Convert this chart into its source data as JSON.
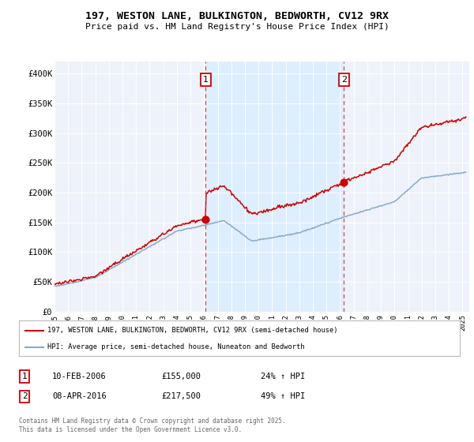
{
  "title_line1": "197, WESTON LANE, BULKINGTON, BEDWORTH, CV12 9RX",
  "title_line2": "Price paid vs. HM Land Registry's House Price Index (HPI)",
  "ylabel_ticks": [
    "£0",
    "£50K",
    "£100K",
    "£150K",
    "£200K",
    "£250K",
    "£300K",
    "£350K",
    "£400K"
  ],
  "ytick_values": [
    0,
    50000,
    100000,
    150000,
    200000,
    250000,
    300000,
    350000,
    400000
  ],
  "ylim": [
    0,
    420000
  ],
  "xlim_start": 1995.0,
  "xlim_end": 2025.5,
  "purchase1_x": 2006.11,
  "purchase1_y": 155000,
  "purchase2_x": 2016.28,
  "purchase2_y": 217500,
  "vline1_x": 2006.11,
  "vline2_x": 2016.28,
  "highlight_color": "#ddeeff",
  "legend_red_label": "197, WESTON LANE, BULKINGTON, BEDWORTH, CV12 9RX (semi-detached house)",
  "legend_blue_label": "HPI: Average price, semi-detached house, Nuneaton and Bedworth",
  "table_row1": [
    "1",
    "10-FEB-2006",
    "£155,000",
    "24% ↑ HPI"
  ],
  "table_row2": [
    "2",
    "08-APR-2016",
    "£217,500",
    "49% ↑ HPI"
  ],
  "footer": "Contains HM Land Registry data © Crown copyright and database right 2025.\nThis data is licensed under the Open Government Licence v3.0.",
  "red_color": "#cc0000",
  "blue_color": "#88aacc",
  "vline_color": "#dd4444",
  "background_color": "#ffffff",
  "plot_bg_color": "#eef2fa"
}
